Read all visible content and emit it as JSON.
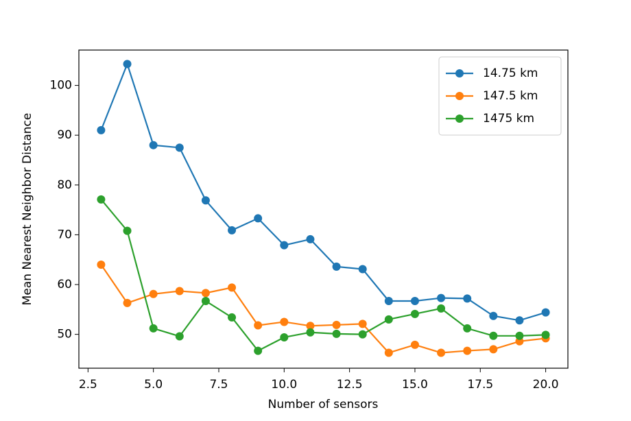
{
  "chart_data": {
    "type": "line",
    "x_label": "Number of sensors",
    "y_label": "Mean Nearest Neighbor Distance",
    "x": [
      3,
      4,
      5,
      6,
      7,
      8,
      9,
      10,
      11,
      12,
      13,
      14,
      15,
      16,
      17,
      18,
      19,
      20
    ],
    "series": [
      {
        "name": "14.75 km",
        "color": "#1f77b4",
        "values": [
          91.0,
          104.3,
          88.0,
          87.5,
          76.9,
          70.9,
          73.3,
          67.9,
          69.1,
          63.6,
          63.1,
          56.7,
          56.7,
          57.3,
          57.2,
          53.7,
          52.8,
          54.4
        ]
      },
      {
        "name": "147.5 km",
        "color": "#ff7f0e",
        "values": [
          64.0,
          56.3,
          58.1,
          58.7,
          58.3,
          59.4,
          51.8,
          52.5,
          51.7,
          51.9,
          52.1,
          46.3,
          47.9,
          46.3,
          46.7,
          47.0,
          48.6,
          49.2
        ]
      },
      {
        "name": "1475 km",
        "color": "#2ca02c",
        "values": [
          77.1,
          70.8,
          51.2,
          49.6,
          56.7,
          53.4,
          46.7,
          49.4,
          50.4,
          50.1,
          50.0,
          53.0,
          54.1,
          55.2,
          51.2,
          49.7,
          49.7,
          49.9
        ]
      }
    ],
    "xlim": [
      2.15,
      20.85
    ],
    "ylim": [
      43.2,
      107.1
    ],
    "xticks": [
      2.5,
      {
        "value": 5,
        "label": "5.0"
      },
      7.5,
      {
        "value": 10,
        "label": "10.0"
      },
      12.5,
      {
        "value": 15,
        "label": "15.0"
      },
      17.5,
      {
        "value": 20,
        "label": "20.0"
      }
    ],
    "yticks": [
      50,
      60,
      70,
      80,
      90,
      100
    ],
    "grid": false,
    "legend_position": "upper-right"
  }
}
